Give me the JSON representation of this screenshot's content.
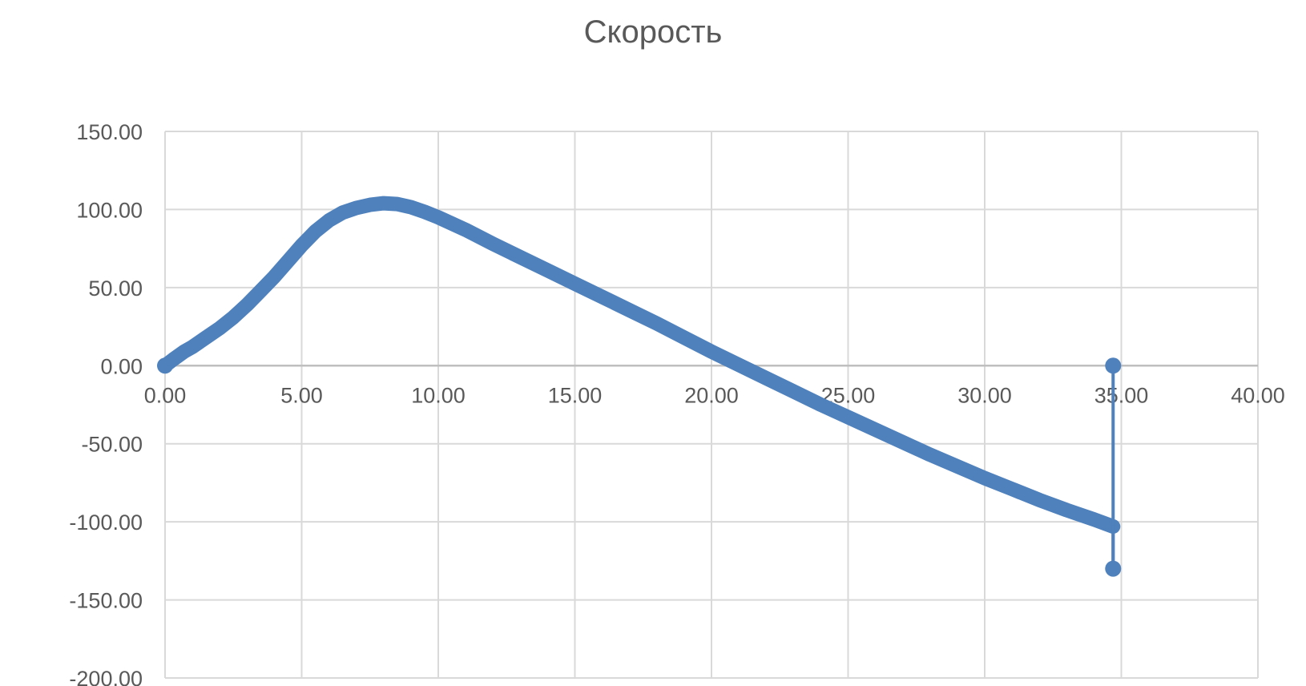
{
  "chart_data": {
    "type": "scatter",
    "title": "Скорость",
    "xlabel": "",
    "ylabel": "",
    "xlim": [
      0,
      40
    ],
    "ylim": [
      -200,
      150
    ],
    "x_ticks": [
      "0.00",
      "5.00",
      "10.00",
      "15.00",
      "20.00",
      "25.00",
      "30.00",
      "35.00",
      "40.00"
    ],
    "y_ticks": [
      "150.00",
      "100.00",
      "50.00",
      "0.00",
      "-50.00",
      "-100.00",
      "-150.00",
      "-200.00"
    ],
    "grid": true,
    "legend": "none",
    "series": [
      {
        "color": "#4f81bd",
        "points": [
          [
            0.0,
            0
          ],
          [
            0.3,
            4
          ],
          [
            0.7,
            9
          ],
          [
            1.0,
            12
          ],
          [
            1.5,
            18
          ],
          [
            2.0,
            24
          ],
          [
            2.5,
            31
          ],
          [
            3.0,
            39
          ],
          [
            3.5,
            48
          ],
          [
            4.0,
            57
          ],
          [
            4.5,
            67
          ],
          [
            5.0,
            77
          ],
          [
            5.5,
            86
          ],
          [
            6.0,
            93
          ],
          [
            6.5,
            98
          ],
          [
            7.0,
            101
          ],
          [
            7.5,
            103
          ],
          [
            8.0,
            104
          ],
          [
            8.5,
            103.5
          ],
          [
            9.0,
            101.5
          ],
          [
            9.5,
            98.5
          ],
          [
            10.0,
            95
          ],
          [
            11.0,
            87
          ],
          [
            12.0,
            78
          ],
          [
            13.0,
            69.5
          ],
          [
            14.0,
            61
          ],
          [
            15.0,
            52.5
          ],
          [
            16.0,
            44
          ],
          [
            17.0,
            35.5
          ],
          [
            18.0,
            27
          ],
          [
            19.0,
            18
          ],
          [
            20.0,
            9
          ],
          [
            21.0,
            0.5
          ],
          [
            22.0,
            -8
          ],
          [
            23.0,
            -16.5
          ],
          [
            24.0,
            -25
          ],
          [
            25.0,
            -33
          ],
          [
            26.0,
            -41
          ],
          [
            27.0,
            -49
          ],
          [
            28.0,
            -57
          ],
          [
            29.0,
            -64.5
          ],
          [
            30.0,
            -72
          ],
          [
            31.0,
            -79
          ],
          [
            32.0,
            -86
          ],
          [
            33.0,
            -92.5
          ],
          [
            34.0,
            -98.5
          ],
          [
            34.7,
            -103
          ],
          [
            34.7,
            -130
          ],
          [
            34.7,
            0
          ]
        ]
      }
    ]
  }
}
